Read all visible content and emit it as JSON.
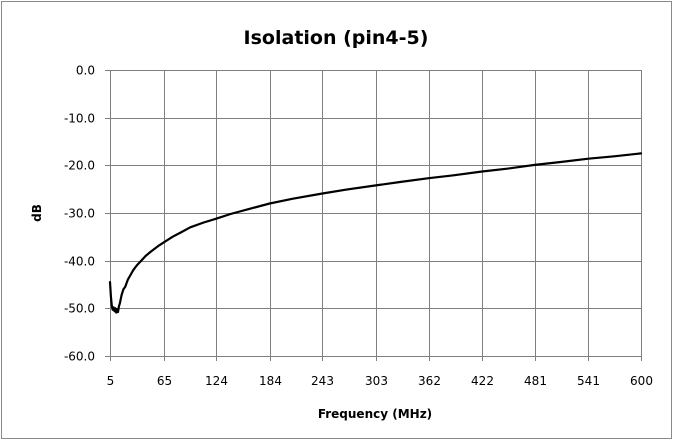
{
  "chart_data": {
    "type": "line",
    "title": "Isolation (pin4-5)",
    "xlabel": "Frequency (MHz)",
    "ylabel": "dB",
    "xlim": [
      5,
      600
    ],
    "ylim": [
      -60,
      0
    ],
    "x_ticks": [
      "5",
      "65",
      "124",
      "184",
      "243",
      "303",
      "362",
      "422",
      "481",
      "541",
      "600"
    ],
    "y_ticks": [
      "0.0",
      "-10.0",
      "-20.0",
      "-30.0",
      "-40.0",
      "-50.0",
      "-60.0"
    ],
    "y_tick_values": [
      0,
      -10,
      -20,
      -30,
      -40,
      -50,
      -60
    ],
    "grid": true,
    "legend": "none",
    "series": [
      {
        "color": "#000000",
        "x": [
          5,
          6,
          7,
          8,
          9,
          10,
          11,
          12,
          13,
          14,
          15,
          16,
          18,
          20,
          22,
          25,
          28,
          31,
          35,
          40,
          45,
          50,
          55,
          60,
          65,
          75,
          85,
          95,
          110,
          124,
          140,
          160,
          184,
          210,
          243,
          270,
          303,
          330,
          362,
          390,
          422,
          450,
          481,
          510,
          541,
          570,
          600
        ],
        "y": [
          -44.5,
          -47.5,
          -49.5,
          -50.3,
          -49.8,
          -50.6,
          -50.0,
          -50.9,
          -50.2,
          -50.8,
          -49.6,
          -49.0,
          -47.2,
          -46.0,
          -45.5,
          -44.0,
          -43.0,
          -42.0,
          -41.0,
          -40.0,
          -39.0,
          -38.2,
          -37.5,
          -36.8,
          -36.2,
          -35.0,
          -34.0,
          -33.0,
          -32.0,
          -31.2,
          -30.2,
          -29.2,
          -28.0,
          -27.0,
          -25.9,
          -25.1,
          -24.2,
          -23.5,
          -22.7,
          -22.1,
          -21.3,
          -20.7,
          -19.9,
          -19.3,
          -18.6,
          -18.1,
          -17.5
        ]
      }
    ]
  }
}
